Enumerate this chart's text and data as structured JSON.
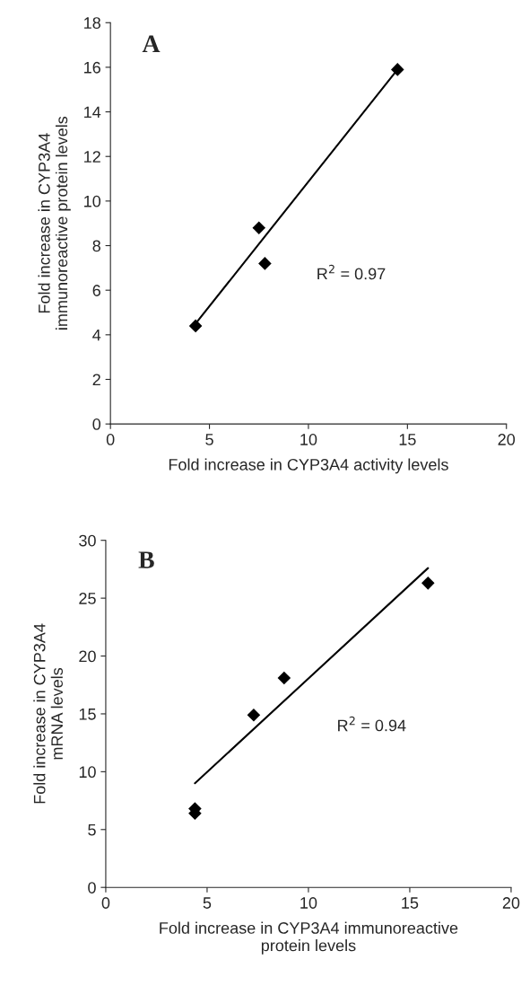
{
  "chart_data": [
    {
      "type": "scatter",
      "title": "A",
      "xlabel": "Fold increase in CYP3A4 activity levels",
      "ylabel": "Fold increase in CYP3A4\nimmunoreactive protein levels",
      "annotations": [
        "R$^{2}$ = 0.97"
      ],
      "xlim": [
        0,
        20
      ],
      "ylim": [
        0,
        18
      ],
      "xticks": [
        0,
        5,
        10,
        15,
        20
      ],
      "yticks": [
        0,
        2,
        4,
        6,
        8,
        10,
        12,
        14,
        16,
        18
      ],
      "grid": false,
      "marker": "diamond",
      "series": [
        {
          "color": "#000000",
          "x": [
            4.3,
            7.5,
            7.8,
            14.5
          ],
          "values": [
            4.4,
            8.8,
            7.2,
            15.9
          ]
        },
        {
          "type": "line",
          "color": "#000000",
          "marker": "none",
          "x": [
            4.3,
            14.5
          ],
          "values": [
            4.5,
            15.9
          ]
        }
      ]
    },
    {
      "type": "scatter",
      "title": "B",
      "xlabel": "Fold increase in CYP3A4 immunoreactive\nprotein levels",
      "ylabel": "Fold increase in CYP3A4\nmRNA levels",
      "annotations": [
        "R$^{2}$ = 0.94"
      ],
      "xlim": [
        0,
        20
      ],
      "ylim": [
        0,
        30
      ],
      "xticks": [
        0,
        5,
        10,
        15,
        20
      ],
      "yticks": [
        0,
        5,
        10,
        15,
        20,
        25,
        30
      ],
      "grid": false,
      "marker": "diamond",
      "series": [
        {
          "color": "#000000",
          "x": [
            4.4,
            4.4,
            7.3,
            8.8,
            15.9
          ],
          "values": [
            6.8,
            6.4,
            14.9,
            18.1,
            26.3
          ]
        },
        {
          "type": "line",
          "color": "#000000",
          "marker": "none",
          "x": [
            4.4,
            15.9
          ],
          "values": [
            9.0,
            27.6
          ]
        }
      ]
    }
  ]
}
